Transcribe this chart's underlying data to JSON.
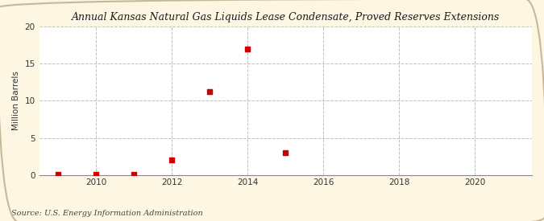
{
  "title": "Annual Kansas Natural Gas Liquids Lease Condensate, Proved Reserves Extensions",
  "ylabel": "Million Barrels",
  "source": "Source: U.S. Energy Information Administration",
  "figure_bg": "#fdf6e3",
  "plot_bg": "#ffffff",
  "border_color": "#c8b89a",
  "marker_color": "#cc0000",
  "grid_color": "#c0c0c0",
  "xlim": [
    2008.5,
    2021.5
  ],
  "ylim": [
    0,
    20
  ],
  "xticks": [
    2010,
    2012,
    2014,
    2016,
    2018,
    2020
  ],
  "yticks": [
    0,
    5,
    10,
    15,
    20
  ],
  "data_years": [
    2009,
    2010,
    2011,
    2012,
    2013,
    2014,
    2015
  ],
  "data_values": [
    0.05,
    0.08,
    0.08,
    2.0,
    11.2,
    17.0,
    3.0
  ]
}
